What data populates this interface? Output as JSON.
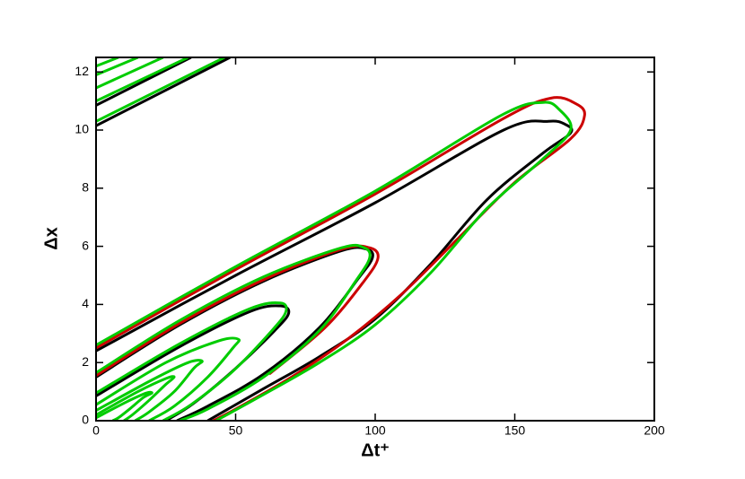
{
  "chart_data": {
    "type": "contour",
    "x_label": "Δt⁺",
    "y_label": "Δx",
    "xlim": [
      0,
      200
    ],
    "xticks": [
      0,
      50,
      100,
      150,
      200
    ],
    "ylim": [
      0,
      12.5
    ],
    "yticks": [
      0,
      2,
      4,
      6,
      8,
      10,
      12
    ],
    "series": [
      {
        "color": "#000000",
        "x": [
          0,
          50,
          100,
          146,
          162,
          168,
          170,
          160,
          140,
          120,
          100,
          80,
          60,
          40
        ],
        "y": [
          2.4,
          5.0,
          7.5,
          10.0,
          10.3,
          10.2,
          9.9,
          9.2,
          7.6,
          5.4,
          3.5,
          2.2,
          1.1,
          0
        ]
      },
      {
        "color": "#cc0000",
        "x": [
          0,
          50,
          100,
          146,
          163,
          172,
          175,
          170,
          150,
          130,
          110,
          90,
          70,
          50,
          42
        ],
        "y": [
          2.5,
          5.2,
          7.8,
          10.4,
          11.1,
          10.9,
          10.5,
          9.7,
          8.2,
          6.3,
          4.4,
          2.8,
          1.5,
          0.4,
          0
        ]
      },
      {
        "color": "#00cc00",
        "x": [
          0,
          50,
          100,
          145,
          160,
          166,
          170,
          160,
          140,
          120,
          100,
          80,
          60,
          43
        ],
        "y": [
          2.6,
          5.3,
          7.9,
          10.5,
          10.95,
          10.7,
          10.0,
          9.0,
          7.3,
          5.1,
          3.3,
          2.0,
          0.9,
          0
        ]
      },
      {
        "color": "#000000",
        "x": [
          0,
          30,
          60,
          88,
          97,
          99,
          94,
          80,
          60,
          40,
          29
        ],
        "y": [
          1.5,
          3.3,
          4.8,
          5.85,
          5.9,
          5.6,
          4.9,
          3.2,
          1.6,
          0.5,
          0
        ]
      },
      {
        "color": "#cc0000",
        "x": [
          0,
          30,
          60,
          88,
          98,
          101,
          96,
          82,
          62
        ],
        "y": [
          1.55,
          3.35,
          4.85,
          5.9,
          5.95,
          5.6,
          4.8,
          3.2,
          1.6
        ]
      },
      {
        "color": "#00cc00",
        "x": [
          0,
          30,
          60,
          88,
          96,
          98,
          93,
          80,
          60,
          40,
          30
        ],
        "y": [
          1.65,
          3.45,
          4.95,
          5.95,
          5.95,
          5.6,
          4.8,
          3.1,
          1.5,
          0.4,
          0
        ]
      },
      {
        "color": "#000000",
        "x": [
          0,
          30,
          55,
          66,
          69,
          64,
          50,
          35,
          25
        ],
        "y": [
          0.85,
          2.55,
          3.75,
          3.95,
          3.7,
          3.1,
          1.8,
          0.6,
          0
        ]
      },
      {
        "color": "#00cc00",
        "x": [
          0,
          30,
          55,
          66,
          68,
          63,
          49,
          34,
          24
        ],
        "y": [
          0.95,
          2.65,
          3.85,
          4.05,
          3.75,
          3.1,
          1.7,
          0.55,
          0
        ]
      },
      {
        "color": "#00cc00",
        "x": [
          0,
          25,
          44,
          51,
          49,
          40,
          28,
          19
        ],
        "y": [
          0.55,
          2.0,
          2.75,
          2.8,
          2.5,
          1.5,
          0.5,
          0
        ]
      },
      {
        "color": "#00cc00",
        "x": [
          0,
          20,
          33,
          38,
          35,
          28,
          19,
          14
        ],
        "y": [
          0.35,
          1.4,
          2.0,
          2.05,
          1.8,
          1.0,
          0.3,
          0
        ]
      },
      {
        "color": "#00cc00",
        "x": [
          0,
          15,
          25,
          28,
          25,
          19,
          13,
          10
        ],
        "y": [
          0.2,
          1.0,
          1.45,
          1.5,
          1.25,
          0.7,
          0.2,
          0
        ]
      },
      {
        "color": "#00cc00",
        "x": [
          0,
          11,
          18,
          20,
          17,
          12,
          8,
          6
        ],
        "y": [
          0.1,
          0.65,
          0.95,
          0.95,
          0.8,
          0.4,
          0.1,
          0
        ]
      },
      {
        "color": "#000000",
        "x": [
          0,
          48
        ],
        "y": [
          10.15,
          12.5
        ]
      },
      {
        "color": "#00cc00",
        "x": [
          0,
          46
        ],
        "y": [
          10.3,
          12.5
        ]
      },
      {
        "color": "#000000",
        "x": [
          0,
          34
        ],
        "y": [
          10.85,
          12.5
        ]
      },
      {
        "color": "#00cc00",
        "x": [
          0,
          33
        ],
        "y": [
          11.0,
          12.5
        ]
      },
      {
        "color": "#00cc00",
        "x": [
          0,
          24
        ],
        "y": [
          11.45,
          12.5
        ]
      },
      {
        "color": "#00cc00",
        "x": [
          0,
          15
        ],
        "y": [
          11.9,
          12.5
        ]
      },
      {
        "color": "#00cc00",
        "x": [
          0,
          8
        ],
        "y": [
          12.2,
          12.5
        ]
      }
    ]
  }
}
